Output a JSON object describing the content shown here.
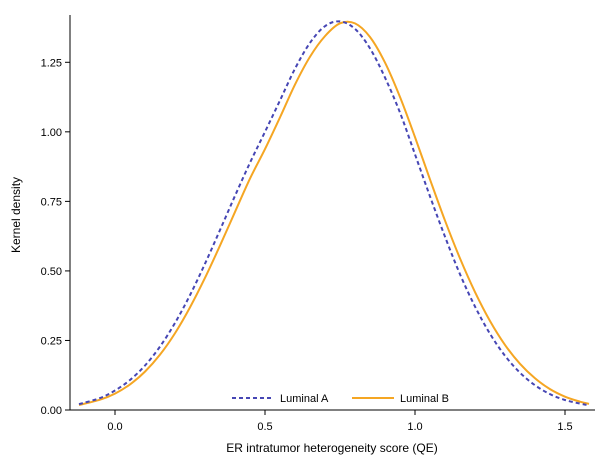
{
  "chart_data": {
    "type": "line",
    "xlabel": "ER intratumor heterogeneity score (QE)",
    "ylabel": "Kernel density",
    "xlim": [
      -0.15,
      1.6
    ],
    "ylim": [
      0,
      1.42
    ],
    "x_ticks": [
      0.0,
      0.5,
      1.0,
      1.5
    ],
    "x_tick_labels": [
      "0.0",
      "0.5",
      "1.0",
      "1.5"
    ],
    "y_ticks": [
      0.0,
      0.25,
      0.5,
      0.75,
      1.0,
      1.25
    ],
    "y_tick_labels": [
      "0.00",
      "0.25",
      "0.50",
      "0.75",
      "1.00",
      "1.25"
    ],
    "grid": false,
    "legend_position": "bottom-center",
    "series": [
      {
        "name": "Luminal A",
        "color": "#4646b4",
        "line_style": "dashed",
        "x": [
          -0.12,
          -0.05,
          0.0,
          0.05,
          0.1,
          0.15,
          0.2,
          0.25,
          0.3,
          0.35,
          0.4,
          0.45,
          0.5,
          0.55,
          0.6,
          0.65,
          0.7,
          0.75,
          0.8,
          0.85,
          0.9,
          0.95,
          1.0,
          1.05,
          1.1,
          1.15,
          1.2,
          1.25,
          1.3,
          1.35,
          1.4,
          1.45,
          1.5,
          1.55,
          1.58
        ],
        "y": [
          0.021,
          0.043,
          0.07,
          0.108,
          0.16,
          0.228,
          0.313,
          0.413,
          0.526,
          0.647,
          0.77,
          0.889,
          1.0,
          1.113,
          1.227,
          1.32,
          1.38,
          1.397,
          1.37,
          1.3,
          1.195,
          1.069,
          0.919,
          0.768,
          0.623,
          0.488,
          0.372,
          0.274,
          0.195,
          0.134,
          0.089,
          0.057,
          0.036,
          0.023,
          0.017
        ]
      },
      {
        "name": "Luminal B",
        "color": "#f5a623",
        "line_style": "solid",
        "x": [
          -0.12,
          -0.05,
          0.0,
          0.05,
          0.1,
          0.15,
          0.2,
          0.25,
          0.3,
          0.35,
          0.4,
          0.45,
          0.5,
          0.55,
          0.6,
          0.65,
          0.7,
          0.75,
          0.8,
          0.85,
          0.9,
          0.95,
          1.0,
          1.05,
          1.1,
          1.15,
          1.2,
          1.25,
          1.3,
          1.35,
          1.4,
          1.45,
          1.5,
          1.55,
          1.58
        ],
        "y": [
          0.018,
          0.037,
          0.059,
          0.092,
          0.138,
          0.199,
          0.276,
          0.369,
          0.475,
          0.591,
          0.712,
          0.832,
          0.938,
          1.052,
          1.17,
          1.27,
          1.344,
          1.39,
          1.39,
          1.341,
          1.249,
          1.125,
          0.981,
          0.829,
          0.681,
          0.545,
          0.424,
          0.32,
          0.234,
          0.166,
          0.114,
          0.075,
          0.048,
          0.03,
          0.022
        ]
      }
    ]
  }
}
